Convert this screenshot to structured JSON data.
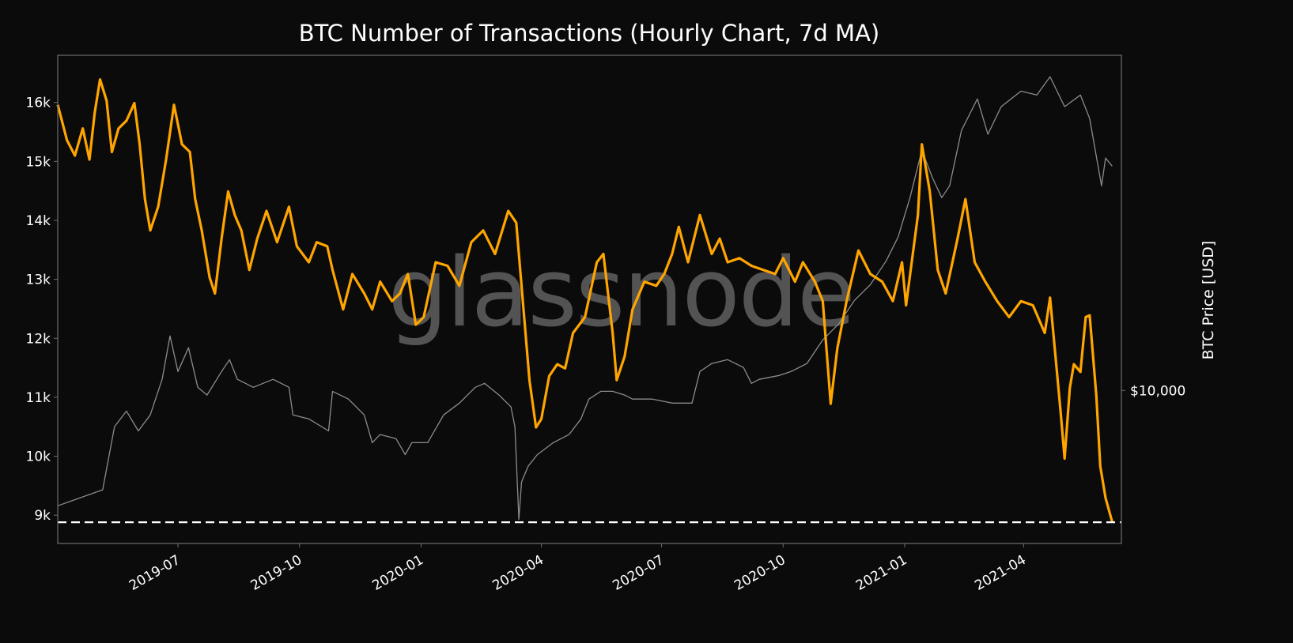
{
  "chart_data": {
    "type": "line",
    "title": "BTC Number of Transactions (Hourly Chart, 7d MA)",
    "xlabel": "",
    "ylabel": "",
    "y2label": "BTC Price [USD]",
    "watermark": "glassnode",
    "xlim": [
      "2019-04-01",
      "2021-06-14"
    ],
    "ylim": [
      8520,
      16800
    ],
    "y2lim": [
      4040,
      72800
    ],
    "y2scale": "log",
    "grid": false,
    "x_ticks": [
      {
        "date": "2019-07-01",
        "label": "2019-07"
      },
      {
        "date": "2019-10-01",
        "label": "2019-10"
      },
      {
        "date": "2020-01-01",
        "label": "2020-01"
      },
      {
        "date": "2020-04-01",
        "label": "2020-04"
      },
      {
        "date": "2020-07-01",
        "label": "2020-07"
      },
      {
        "date": "2020-10-01",
        "label": "2020-10"
      },
      {
        "date": "2021-01-01",
        "label": "2021-01"
      },
      {
        "date": "2021-04-01",
        "label": "2021-04"
      }
    ],
    "y_ticks": [
      {
        "value": 9000,
        "label": "9k"
      },
      {
        "value": 10000,
        "label": "10k"
      },
      {
        "value": 11000,
        "label": "11k"
      },
      {
        "value": 12000,
        "label": "12k"
      },
      {
        "value": 13000,
        "label": "13k"
      },
      {
        "value": 14000,
        "label": "14k"
      },
      {
        "value": 15000,
        "label": "15k"
      },
      {
        "value": 16000,
        "label": "16k"
      }
    ],
    "y2_ticks": [
      {
        "value": 10000,
        "label": "$10,000"
      }
    ],
    "reference_line": {
      "value": 8880,
      "style": "dashed",
      "color": "#ffffff"
    },
    "colors": {
      "background": "#0b0b0b",
      "transactions": "#ffa500",
      "price": "#8c8c8c",
      "frame": "#6e6e6e"
    },
    "series": [
      {
        "axis": "left",
        "points": [
          [
            "2019-04-01",
            15960
          ],
          [
            "2019-04-08",
            15360
          ],
          [
            "2019-04-14",
            15100
          ],
          [
            "2019-04-20",
            15560
          ],
          [
            "2019-04-25",
            15030
          ],
          [
            "2019-04-29",
            15830
          ],
          [
            "2019-05-03",
            16390
          ],
          [
            "2019-05-08",
            16030
          ],
          [
            "2019-05-12",
            15160
          ],
          [
            "2019-05-17",
            15560
          ],
          [
            "2019-05-23",
            15690
          ],
          [
            "2019-05-29",
            15990
          ],
          [
            "2019-06-02",
            15290
          ],
          [
            "2019-06-06",
            14360
          ],
          [
            "2019-06-10",
            13830
          ],
          [
            "2019-06-16",
            14230
          ],
          [
            "2019-06-22",
            15030
          ],
          [
            "2019-06-28",
            15960
          ],
          [
            "2019-07-04",
            15290
          ],
          [
            "2019-07-10",
            15160
          ],
          [
            "2019-07-14",
            14360
          ],
          [
            "2019-07-19",
            13830
          ],
          [
            "2019-07-25",
            13030
          ],
          [
            "2019-07-29",
            12760
          ],
          [
            "2019-08-03",
            13690
          ],
          [
            "2019-08-08",
            14490
          ],
          [
            "2019-08-13",
            14090
          ],
          [
            "2019-08-18",
            13830
          ],
          [
            "2019-08-24",
            13160
          ],
          [
            "2019-08-30",
            13690
          ],
          [
            "2019-09-06",
            14160
          ],
          [
            "2019-09-14",
            13630
          ],
          [
            "2019-09-23",
            14230
          ],
          [
            "2019-09-29",
            13560
          ],
          [
            "2019-10-08",
            13290
          ],
          [
            "2019-10-14",
            13630
          ],
          [
            "2019-10-22",
            13560
          ],
          [
            "2019-10-26",
            13160
          ],
          [
            "2019-11-03",
            12490
          ],
          [
            "2019-11-10",
            13090
          ],
          [
            "2019-11-19",
            12760
          ],
          [
            "2019-11-25",
            12490
          ],
          [
            "2019-12-01",
            12960
          ],
          [
            "2019-12-10",
            12630
          ],
          [
            "2019-12-16",
            12760
          ],
          [
            "2019-12-22",
            13090
          ],
          [
            "2019-12-28",
            12230
          ],
          [
            "2020-01-03",
            12360
          ],
          [
            "2020-01-12",
            13290
          ],
          [
            "2020-01-21",
            13230
          ],
          [
            "2020-01-30",
            12890
          ],
          [
            "2020-02-08",
            13630
          ],
          [
            "2020-02-17",
            13830
          ],
          [
            "2020-02-26",
            13430
          ],
          [
            "2020-03-07",
            14160
          ],
          [
            "2020-03-13",
            13960
          ],
          [
            "2020-03-19",
            12360
          ],
          [
            "2020-03-23",
            11290
          ],
          [
            "2020-03-28",
            10490
          ],
          [
            "2020-04-01",
            10630
          ],
          [
            "2020-04-07",
            11360
          ],
          [
            "2020-04-13",
            11560
          ],
          [
            "2020-04-19",
            11490
          ],
          [
            "2020-04-25",
            12090
          ],
          [
            "2020-05-04",
            12360
          ],
          [
            "2020-05-13",
            13290
          ],
          [
            "2020-05-18",
            13430
          ],
          [
            "2020-05-25",
            12090
          ],
          [
            "2020-05-28",
            11290
          ],
          [
            "2020-06-03",
            11690
          ],
          [
            "2020-06-09",
            12490
          ],
          [
            "2020-06-18",
            12960
          ],
          [
            "2020-06-27",
            12890
          ],
          [
            "2020-07-03",
            13090
          ],
          [
            "2020-07-09",
            13430
          ],
          [
            "2020-07-14",
            13890
          ],
          [
            "2020-07-21",
            13290
          ],
          [
            "2020-07-30",
            14090
          ],
          [
            "2020-08-08",
            13430
          ],
          [
            "2020-08-14",
            13690
          ],
          [
            "2020-08-20",
            13290
          ],
          [
            "2020-08-29",
            13360
          ],
          [
            "2020-09-07",
            13230
          ],
          [
            "2020-09-16",
            13160
          ],
          [
            "2020-09-25",
            13090
          ],
          [
            "2020-10-01",
            13360
          ],
          [
            "2020-10-10",
            12960
          ],
          [
            "2020-10-16",
            13290
          ],
          [
            "2020-10-25",
            12960
          ],
          [
            "2020-10-31",
            12630
          ],
          [
            "2020-11-06",
            10890
          ],
          [
            "2020-11-11",
            11830
          ],
          [
            "2020-11-18",
            12630
          ],
          [
            "2020-11-27",
            13490
          ],
          [
            "2020-12-06",
            13090
          ],
          [
            "2020-12-15",
            12960
          ],
          [
            "2020-12-23",
            12630
          ],
          [
            "2020-12-30",
            13290
          ],
          [
            "2021-01-02",
            12560
          ],
          [
            "2021-01-11",
            14090
          ],
          [
            "2021-01-14",
            15290
          ],
          [
            "2021-01-20",
            14490
          ],
          [
            "2021-01-26",
            13160
          ],
          [
            "2021-02-01",
            12760
          ],
          [
            "2021-02-10",
            13690
          ],
          [
            "2021-02-16",
            14360
          ],
          [
            "2021-02-23",
            13290
          ],
          [
            "2021-03-03",
            12960
          ],
          [
            "2021-03-12",
            12630
          ],
          [
            "2021-03-21",
            12360
          ],
          [
            "2021-03-30",
            12630
          ],
          [
            "2021-04-08",
            12560
          ],
          [
            "2021-04-17",
            12090
          ],
          [
            "2021-04-21",
            12690
          ],
          [
            "2021-04-29",
            10760
          ],
          [
            "2021-05-02",
            9960
          ],
          [
            "2021-05-06",
            11160
          ],
          [
            "2021-05-09",
            11560
          ],
          [
            "2021-05-14",
            11430
          ],
          [
            "2021-05-18",
            12360
          ],
          [
            "2021-05-21",
            12390
          ],
          [
            "2021-05-26",
            11030
          ],
          [
            "2021-05-29",
            9830
          ],
          [
            "2021-06-02",
            9290
          ],
          [
            "2021-06-07",
            8890
          ]
        ]
      },
      {
        "axis": "right",
        "points": [
          [
            "2019-04-01",
            5050
          ],
          [
            "2019-05-05",
            5550
          ],
          [
            "2019-05-14",
            8070
          ],
          [
            "2019-05-23",
            8850
          ],
          [
            "2019-06-01",
            7870
          ],
          [
            "2019-06-10",
            8650
          ],
          [
            "2019-06-19",
            10680
          ],
          [
            "2019-06-25",
            13810
          ],
          [
            "2019-07-01",
            11190
          ],
          [
            "2019-07-09",
            12880
          ],
          [
            "2019-07-16",
            10190
          ],
          [
            "2019-07-23",
            9730
          ],
          [
            "2019-08-03",
            11190
          ],
          [
            "2019-08-09",
            12000
          ],
          [
            "2019-08-15",
            10680
          ],
          [
            "2019-08-27",
            10190
          ],
          [
            "2019-09-11",
            10680
          ],
          [
            "2019-09-23",
            10190
          ],
          [
            "2019-09-26",
            8650
          ],
          [
            "2019-10-08",
            8450
          ],
          [
            "2019-10-23",
            7870
          ],
          [
            "2019-10-26",
            9950
          ],
          [
            "2019-11-07",
            9500
          ],
          [
            "2019-11-19",
            8650
          ],
          [
            "2019-11-25",
            7340
          ],
          [
            "2019-12-01",
            7700
          ],
          [
            "2019-12-13",
            7520
          ],
          [
            "2019-12-20",
            6840
          ],
          [
            "2019-12-25",
            7340
          ],
          [
            "2020-01-06",
            7340
          ],
          [
            "2020-01-18",
            8650
          ],
          [
            "2020-01-30",
            9280
          ],
          [
            "2020-02-11",
            10190
          ],
          [
            "2020-02-18",
            10430
          ],
          [
            "2020-02-29",
            9730
          ],
          [
            "2020-03-09",
            9070
          ],
          [
            "2020-03-12",
            8070
          ],
          [
            "2020-03-15",
            4660
          ],
          [
            "2020-03-17",
            5810
          ],
          [
            "2020-03-22",
            6380
          ],
          [
            "2020-03-29",
            6840
          ],
          [
            "2020-04-10",
            7340
          ],
          [
            "2020-04-22",
            7700
          ],
          [
            "2020-05-01",
            8450
          ],
          [
            "2020-05-07",
            9500
          ],
          [
            "2020-05-16",
            9950
          ],
          [
            "2020-05-25",
            9950
          ],
          [
            "2020-06-03",
            9730
          ],
          [
            "2020-06-09",
            9500
          ],
          [
            "2020-06-24",
            9500
          ],
          [
            "2020-07-09",
            9280
          ],
          [
            "2020-07-24",
            9280
          ],
          [
            "2020-07-30",
            11190
          ],
          [
            "2020-08-08",
            11730
          ],
          [
            "2020-08-20",
            12000
          ],
          [
            "2020-09-01",
            11460
          ],
          [
            "2020-09-07",
            10430
          ],
          [
            "2020-09-13",
            10680
          ],
          [
            "2020-09-28",
            10930
          ],
          [
            "2020-10-07",
            11190
          ],
          [
            "2020-10-19",
            11730
          ],
          [
            "2020-10-31",
            13490
          ],
          [
            "2020-11-12",
            14820
          ],
          [
            "2020-11-24",
            17050
          ],
          [
            "2020-12-06",
            18710
          ],
          [
            "2020-12-18",
            21550
          ],
          [
            "2020-12-27",
            24790
          ],
          [
            "2021-01-05",
            31330
          ],
          [
            "2021-01-14",
            41490
          ],
          [
            "2021-01-22",
            35230
          ],
          [
            "2021-01-29",
            31330
          ],
          [
            "2021-02-04",
            33610
          ],
          [
            "2021-02-13",
            46670
          ],
          [
            "2021-02-25",
            56230
          ],
          [
            "2021-03-05",
            45600
          ],
          [
            "2021-03-15",
            53700
          ],
          [
            "2021-03-30",
            58880
          ],
          [
            "2021-04-11",
            57540
          ],
          [
            "2021-04-21",
            64120
          ],
          [
            "2021-05-02",
            53700
          ],
          [
            "2021-05-14",
            57540
          ],
          [
            "2021-05-21",
            50030
          ],
          [
            "2021-05-30",
            33610
          ],
          [
            "2021-06-02",
            39600
          ],
          [
            "2021-06-07",
            37760
          ]
        ]
      }
    ]
  }
}
